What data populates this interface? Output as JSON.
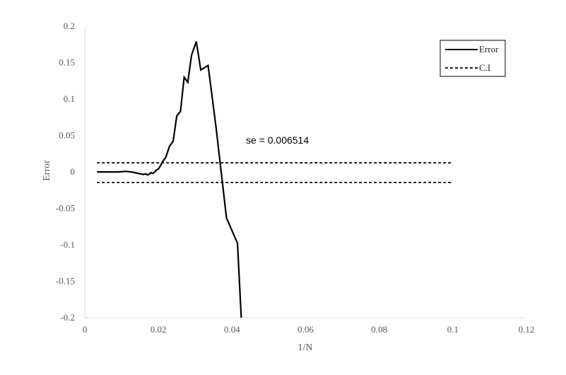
{
  "chart_data": {
    "type": "line",
    "xlabel": "1/N",
    "ylabel": "Error",
    "xlim": [
      0,
      0.12
    ],
    "ylim": [
      -0.2,
      0.2
    ],
    "xticks": [
      0,
      0.02,
      0.04,
      0.06,
      0.08,
      0.1,
      0.12
    ],
    "xtick_labels": [
      "0",
      "0.02",
      "0.04",
      "0.06",
      "0.08",
      "0.1",
      "0.12"
    ],
    "yticks": [
      0.2,
      0.15,
      0.1,
      0.05,
      0,
      -0.05,
      -0.1,
      -0.15,
      -0.2
    ],
    "ytick_labels": [
      "0.2",
      "0.15",
      "0.1",
      "0.05",
      "0",
      "-0.05",
      "-0.1",
      "-0.15",
      "-0.2"
    ],
    "grid": false,
    "legend_position": "top-right",
    "annotation": "se =  0.006514",
    "series": [
      {
        "name": "Error",
        "style": "solid",
        "color": "#000000",
        "x": [
          0.0033,
          0.005,
          0.007,
          0.009,
          0.0105,
          0.011,
          0.012,
          0.013,
          0.014,
          0.015,
          0.016,
          0.0165,
          0.017,
          0.0175,
          0.018,
          0.0185,
          0.019,
          0.0195,
          0.02,
          0.0205,
          0.021,
          0.022,
          0.023,
          0.024,
          0.025,
          0.026,
          0.027,
          0.028,
          0.029,
          0.0303,
          0.0315,
          0.0335,
          0.0357,
          0.0385,
          0.0415,
          0.0425
        ],
        "y": [
          0.0,
          0.0,
          0.0,
          0.0,
          0.0005,
          0.0008,
          0.0003,
          -0.0003,
          -0.0015,
          -0.0025,
          -0.0035,
          -0.0025,
          -0.004,
          -0.003,
          -0.001,
          -0.002,
          0.0,
          0.003,
          0.004,
          0.008,
          0.013,
          0.02,
          0.035,
          0.042,
          0.077,
          0.083,
          0.13,
          0.123,
          0.16,
          0.179,
          0.14,
          0.146,
          0.06,
          -0.063,
          -0.098,
          -0.2
        ]
      },
      {
        "name": "C.I",
        "style": "dashed",
        "color": "#000000",
        "x": [
          0.0033,
          0.1
        ],
        "y": [
          0.0125,
          0.0125
        ]
      },
      {
        "name": "C.I",
        "style": "dashed",
        "color": "#000000",
        "x": [
          0.0033,
          0.1
        ],
        "y": [
          -0.0145,
          -0.0145
        ]
      }
    ]
  },
  "legend": {
    "items": [
      {
        "label": "Error",
        "style": "solid"
      },
      {
        "label": "C.I",
        "style": "dashed"
      }
    ]
  }
}
